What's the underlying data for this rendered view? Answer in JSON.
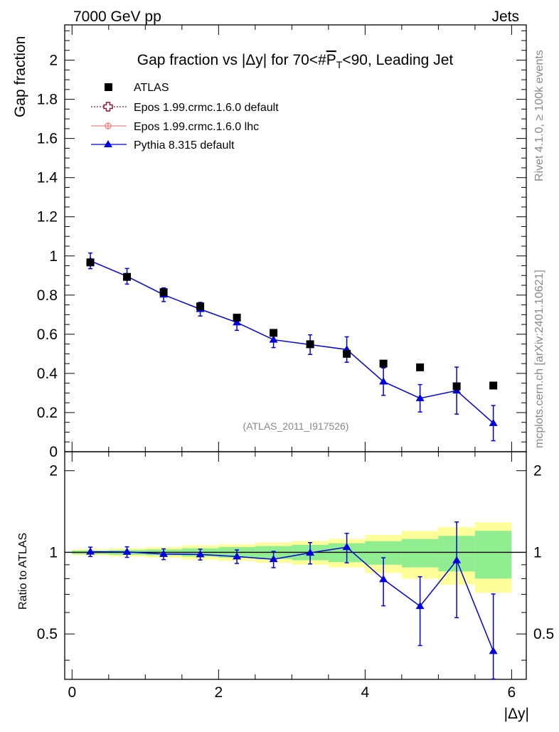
{
  "header": {
    "energy_label": "7000 GeV pp",
    "category_label": "Jets"
  },
  "side_labels": {
    "rivet": "Rivet 4.1.0, ≥ 100k events",
    "mcplots": "mcplots.cern.ch [arXiv:2401.10621]"
  },
  "chart_data": {
    "type": "scatter",
    "title": "Gap fraction vs |Δy| for 70<#P_T<90, Leading Jet",
    "title_parts": {
      "prefix": "Gap fraction vs |Δy| for 70<#",
      "p": "P",
      "sub": "T",
      "suffix": "<90, Leading Jet"
    },
    "analysis_tag": "(ATLAS_2011_I917526)",
    "xlabel": "|Δy|",
    "ylabel": "Gap fraction",
    "ratio_ylabel": "Ratio to ATLAS",
    "xlim": [
      -0.1,
      6.2
    ],
    "ylim": [
      0,
      2.18
    ],
    "ratio_ylim": [
      0.34,
      2.35
    ],
    "x_ticks": [
      0,
      2,
      4,
      6
    ],
    "y_ticks": [
      0,
      0.2,
      0.4,
      0.6,
      0.8,
      1,
      1.2,
      1.4,
      1.6,
      1.8,
      2
    ],
    "y_tick_labels": [
      "0",
      "0.2",
      "0.4",
      "0.6",
      "0.8",
      "1",
      "1.2",
      "1.4",
      "1.6",
      "1.8",
      "2"
    ],
    "ratio_ticks": [
      0.5,
      1,
      2
    ],
    "ratio_tick_labels": [
      "0.5",
      "1",
      "2"
    ],
    "x_tick_labels": [
      "0",
      "2",
      "4",
      "6"
    ],
    "legend": [
      {
        "label": "ATLAS",
        "marker": "square",
        "color": "#000000"
      },
      {
        "label": "Epos 1.99.crmc.1.6.0 default",
        "marker": "open-cross",
        "color": "#8b1a3a"
      },
      {
        "label": "Epos 1.99.crmc.1.6.0 lhc",
        "marker": "cross-circle",
        "color": "#f08080"
      },
      {
        "label": "Pythia 8.315 default",
        "marker": "triangle",
        "color": "#0000dd"
      }
    ],
    "bins": [
      0.0,
      0.5,
      1.0,
      1.5,
      2.0,
      2.5,
      3.0,
      3.5,
      4.0,
      4.5,
      5.0,
      5.5,
      6.0
    ],
    "x": [
      0.25,
      0.75,
      1.25,
      1.75,
      2.25,
      2.75,
      3.25,
      3.75,
      4.25,
      4.75,
      5.25,
      5.75
    ],
    "series": [
      {
        "name": "ATLAS",
        "values": [
          0.967,
          0.893,
          0.815,
          0.742,
          0.685,
          0.607,
          0.549,
          0.5,
          0.45,
          0.431,
          0.334,
          0.338
        ]
      },
      {
        "name": "Pythia 8.315 default",
        "values": [
          0.975,
          0.896,
          0.802,
          0.728,
          0.66,
          0.572,
          0.547,
          0.522,
          0.358,
          0.273,
          0.312,
          0.146
        ],
        "errors": [
          0.04,
          0.04,
          0.035,
          0.035,
          0.04,
          0.04,
          0.05,
          0.065,
          0.07,
          0.07,
          0.12,
          0.09
        ]
      }
    ],
    "ratio": {
      "values": [
        1.005,
        1.003,
        0.985,
        0.982,
        0.965,
        0.943,
        0.996,
        1.045,
        0.795,
        0.633,
        0.934,
        0.432
      ],
      "errors": [
        0.04,
        0.045,
        0.045,
        0.045,
        0.055,
        0.065,
        0.09,
        0.13,
        0.16,
        0.18,
        0.36,
        0.27
      ],
      "band_green": [
        0.015,
        0.02,
        0.025,
        0.035,
        0.045,
        0.055,
        0.065,
        0.08,
        0.1,
        0.12,
        0.15,
        0.2
      ],
      "band_yellow": [
        0.025,
        0.035,
        0.045,
        0.06,
        0.07,
        0.085,
        0.1,
        0.12,
        0.16,
        0.2,
        0.24,
        0.29
      ]
    },
    "colors": {
      "band_green": "#90ee90",
      "band_yellow": "#ffff99",
      "mc": "#0000dd",
      "data": "#000000"
    }
  }
}
